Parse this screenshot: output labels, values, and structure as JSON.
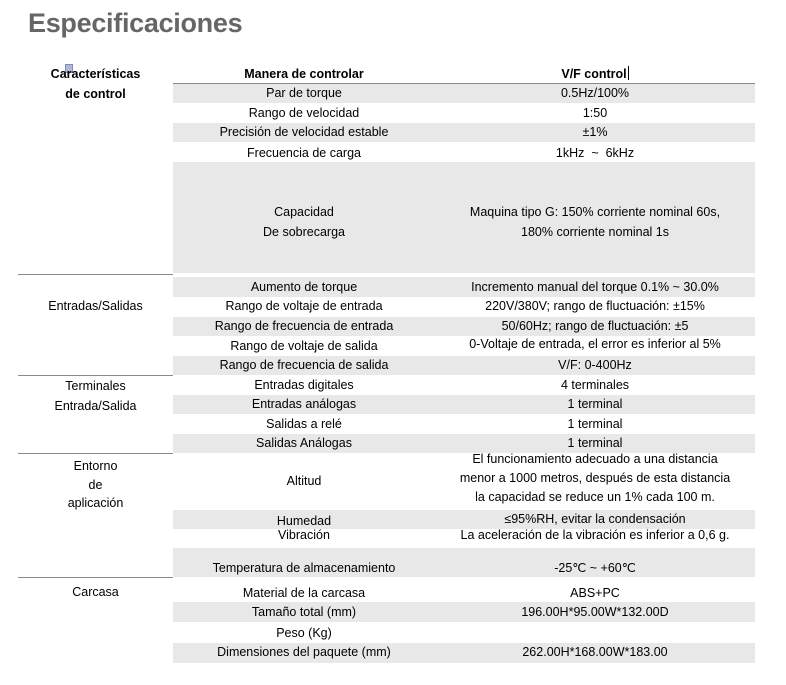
{
  "title": "Especificaciones",
  "header": {
    "param": "Manera de controlar",
    "value": "V/F control"
  },
  "groups": [
    {
      "name": "control",
      "lines": [
        "Características",
        "de control"
      ]
    },
    {
      "name": "io",
      "lines": [
        "Entradas/Salidas"
      ]
    },
    {
      "name": "terminals",
      "lines": [
        "Terminales",
        "Entrada/Salida"
      ]
    },
    {
      "name": "environment",
      "lines": [
        "Entorno",
        "de",
        "aplicación"
      ]
    },
    {
      "name": "housing",
      "lines": [
        "Carcasa"
      ]
    }
  ],
  "rows": [
    {
      "param": "Par de torque",
      "value": "0.5Hz/100%"
    },
    {
      "param": "Rango de velocidad",
      "value": "1:50"
    },
    {
      "param": "Precisión de velocidad estable",
      "value": "±1%"
    },
    {
      "param": "Frecuencia de carga",
      "value": "1kHz  ~  6kHz"
    },
    {
      "param_lines": [
        "Capacidad",
        "De sobrecarga"
      ],
      "value_lines": [
        "Maquina tipo G: 150% corriente nominal 60s,",
        "180% corriente nominal 1s"
      ]
    },
    {
      "param": "Aumento de torque",
      "value": "Incremento manual del torque 0.1% ~ 30.0%"
    },
    {
      "param": "Rango de voltaje de entrada",
      "value": "220V/380V; rango de fluctuación: ±15%"
    },
    {
      "param": "Rango de frecuencia de entrada",
      "value": "50/60Hz; rango de fluctuación: ±5"
    },
    {
      "param": "Rango de voltaje de salida",
      "value": "0-Voltaje de entrada, el error es inferior al 5%"
    },
    {
      "param": "Rango de frecuencia de salida",
      "value": "V/F: 0-400Hz"
    },
    {
      "param": "Entradas digitales",
      "value": "4 terminales"
    },
    {
      "param": "Entradas análogas",
      "value": "1 terminal"
    },
    {
      "param": "Salidas a relé",
      "value": "1 terminal"
    },
    {
      "param": "Salidas Análogas",
      "value": "1 terminal"
    },
    {
      "param": "Altitud",
      "value_lines": [
        "El funcionamiento adecuado a una distancia",
        "menor a 1000 metros, después de esta distancia",
        "la capacidad se reduce un 1% cada 100 m."
      ]
    },
    {
      "param": "Humedad",
      "value": "≤95%RH, evitar la condensación"
    },
    {
      "param": "Vibración",
      "value": "La aceleración de la vibración es inferior a 0,6 g."
    },
    {
      "param": "Temperatura de almacenamiento",
      "value": "-25℃ ~ +60℃"
    },
    {
      "param": "Material de la carcasa",
      "value": "ABS+PC"
    },
    {
      "param": "Tamaño total (mm)",
      "value": "196.00H*95.00W*132.00D"
    },
    {
      "param": "Peso (Kg)",
      "value": ""
    },
    {
      "param": "Dimensiones del paquete (mm)",
      "value": "262.00H*168.00W*183.00"
    }
  ]
}
